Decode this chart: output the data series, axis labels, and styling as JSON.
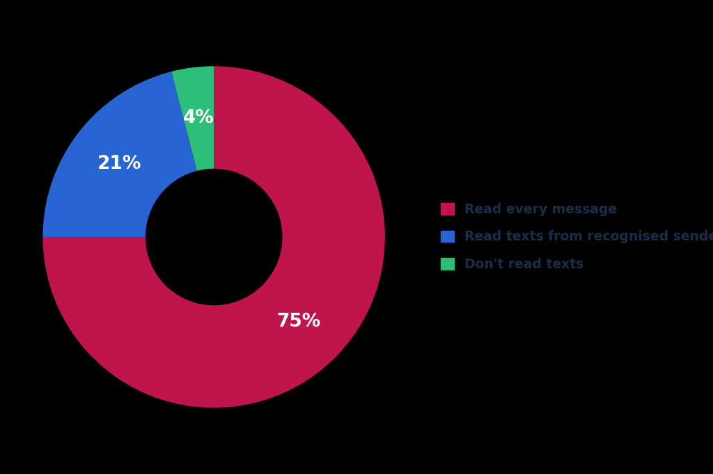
{
  "slices": [
    75,
    21,
    4
  ],
  "labels": [
    "Read every message",
    "Read texts from recognised senders",
    "Don't read texts"
  ],
  "colors": [
    "#C0144C",
    "#2764D4",
    "#2DBF7A"
  ],
  "pct_labels": [
    "75%",
    "21%",
    "4%"
  ],
  "text_color": "#ffffff",
  "background_color": "#000000",
  "legend_text_color": "#1a2e4a",
  "donut_width": 0.6,
  "startangle": 90,
  "pct_fontsize": 19,
  "legend_fontsize": 13.5
}
